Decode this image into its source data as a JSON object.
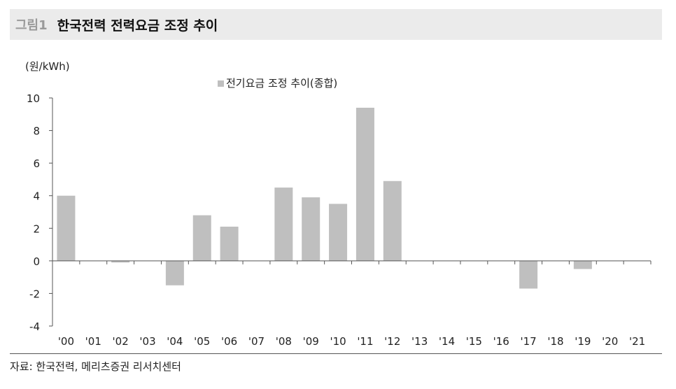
{
  "header": {
    "figure_number": "그림1",
    "title": "한국전력 전력요금 조정 추이"
  },
  "source": "자료: 한국전력, 메리츠증권 리서치센터",
  "colors": {
    "bar": "#bfbfbf",
    "header_bg": "#ebebeb",
    "axis": "#555555"
  },
  "chart_data": {
    "type": "bar",
    "unit_label": "(원/kWh)",
    "categories": [
      "'00",
      "'01",
      "'02",
      "'03",
      "'04",
      "'05",
      "'06",
      "'07",
      "'08",
      "'09",
      "'10",
      "'11",
      "'12",
      "'13",
      "'14",
      "'15",
      "'16",
      "'17",
      "'18",
      "'19",
      "'20",
      "'21"
    ],
    "series": [
      {
        "name": "전기요금 조정 추이(종합)",
        "values": [
          4.0,
          0,
          -0.1,
          0,
          -1.5,
          2.8,
          2.1,
          0,
          4.5,
          3.9,
          3.5,
          9.4,
          4.9,
          0,
          0,
          0,
          0,
          -1.7,
          0,
          -0.5,
          0,
          0
        ]
      }
    ],
    "ylim": [
      -4,
      10
    ],
    "yticks": [
      10,
      8,
      6,
      4,
      2,
      0,
      -2,
      -4
    ],
    "legend_position": "top-center",
    "grid": false
  }
}
